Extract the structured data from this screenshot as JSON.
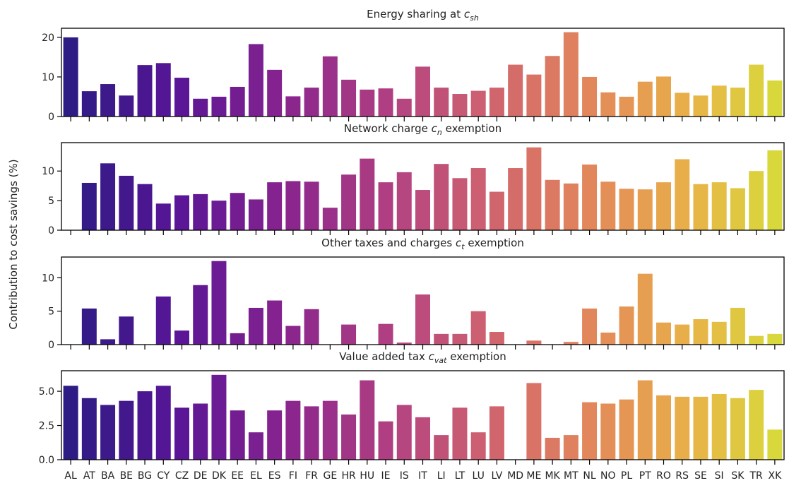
{
  "figure": {
    "ylabel": "Contribution to cost savings (%)"
  },
  "chart_data": [
    {
      "type": "bar",
      "title": "Energy sharing at c_sh",
      "title_main": "Energy sharing at ",
      "title_sym": "c",
      "title_sub": "sh",
      "title_suffix": "",
      "ylim": [
        0,
        22.3
      ],
      "yticks": [
        0,
        10,
        20
      ],
      "categories": [
        "AL",
        "AT",
        "BA",
        "BE",
        "BG",
        "CY",
        "CZ",
        "DE",
        "DK",
        "EE",
        "EL",
        "ES",
        "FI",
        "FR",
        "GE",
        "HR",
        "HU",
        "IE",
        "IS",
        "IT",
        "LI",
        "LT",
        "LU",
        "LV",
        "MD",
        "ME",
        "MK",
        "MT",
        "NL",
        "NO",
        "PL",
        "PT",
        "RO",
        "RS",
        "SE",
        "SI",
        "SK",
        "TR",
        "XK"
      ],
      "values": [
        20.0,
        6.4,
        8.2,
        5.3,
        13.0,
        13.5,
        9.8,
        4.5,
        5.0,
        7.5,
        18.3,
        11.8,
        5.1,
        7.3,
        15.2,
        9.3,
        6.8,
        7.1,
        4.5,
        12.6,
        7.3,
        5.7,
        6.5,
        7.3,
        13.1,
        10.6,
        15.3,
        21.3,
        10.0,
        6.1,
        5.0,
        8.8,
        10.1,
        6.0,
        5.3,
        7.8,
        7.3,
        13.1,
        9.1
      ]
    },
    {
      "type": "bar",
      "title": "Network charge c_n exemption",
      "title_main": "Network charge ",
      "title_sym": "c",
      "title_sub": "n",
      "title_suffix": " exemption",
      "ylim": [
        0,
        14.8
      ],
      "yticks": [
        0,
        5,
        10
      ],
      "categories": [
        "AL",
        "AT",
        "BA",
        "BE",
        "BG",
        "CY",
        "CZ",
        "DE",
        "DK",
        "EE",
        "EL",
        "ES",
        "FI",
        "FR",
        "GE",
        "HR",
        "HU",
        "IE",
        "IS",
        "IT",
        "LI",
        "LT",
        "LU",
        "LV",
        "MD",
        "ME",
        "MK",
        "MT",
        "NL",
        "NO",
        "PL",
        "PT",
        "RO",
        "RS",
        "SE",
        "SI",
        "SK",
        "TR",
        "XK"
      ],
      "values": [
        0,
        8.0,
        11.3,
        9.2,
        7.8,
        4.5,
        5.9,
        6.1,
        5.0,
        6.3,
        5.2,
        8.1,
        8.3,
        8.2,
        3.8,
        9.4,
        12.1,
        8.1,
        9.8,
        6.8,
        11.2,
        8.8,
        10.5,
        6.5,
        10.5,
        14.0,
        8.5,
        7.9,
        11.1,
        8.2,
        7.0,
        6.9,
        8.1,
        12.0,
        7.8,
        8.1,
        7.1,
        10.0,
        13.5
      ]
    },
    {
      "type": "bar",
      "title": "Other taxes and charges c_t exemption",
      "title_main": "Other taxes and charges ",
      "title_sym": "c",
      "title_sub": "t",
      "title_suffix": " exemption",
      "ylim": [
        0,
        13.1
      ],
      "yticks": [
        0,
        5,
        10
      ],
      "categories": [
        "AL",
        "AT",
        "BA",
        "BE",
        "BG",
        "CY",
        "CZ",
        "DE",
        "DK",
        "EE",
        "EL",
        "ES",
        "FI",
        "FR",
        "GE",
        "HR",
        "HU",
        "IE",
        "IS",
        "IT",
        "LI",
        "LT",
        "LU",
        "LV",
        "MD",
        "ME",
        "MK",
        "MT",
        "NL",
        "NO",
        "PL",
        "PT",
        "RO",
        "RS",
        "SE",
        "SI",
        "SK",
        "TR",
        "XK"
      ],
      "values": [
        0,
        5.4,
        0.8,
        4.2,
        0,
        7.2,
        2.1,
        8.9,
        12.5,
        1.7,
        5.5,
        6.6,
        2.8,
        5.3,
        0,
        3.0,
        0,
        3.1,
        0.3,
        7.5,
        1.6,
        1.6,
        5.0,
        1.9,
        0,
        0.6,
        0,
        0.4,
        5.4,
        1.8,
        5.7,
        10.6,
        3.3,
        3.0,
        3.8,
        3.4,
        5.5,
        1.3,
        1.6
      ]
    },
    {
      "type": "bar",
      "title": "Value added tax c_vat exemption",
      "title_main": "Value added tax ",
      "title_sym": "c",
      "title_sub": "vat",
      "title_suffix": " exemption",
      "ylim": [
        0,
        6.5
      ],
      "yticks": [
        0.0,
        2.5,
        5.0
      ],
      "yticklabels": [
        "0.0",
        "2.5",
        "5.0"
      ],
      "categories": [
        "AL",
        "AT",
        "BA",
        "BE",
        "BG",
        "CY",
        "CZ",
        "DE",
        "DK",
        "EE",
        "EL",
        "ES",
        "FI",
        "FR",
        "GE",
        "HR",
        "HU",
        "IE",
        "IS",
        "IT",
        "LI",
        "LT",
        "LU",
        "LV",
        "MD",
        "ME",
        "MK",
        "MT",
        "NL",
        "NO",
        "PL",
        "PT",
        "RO",
        "RS",
        "SE",
        "SI",
        "SK",
        "TR",
        "XK"
      ],
      "values": [
        5.4,
        4.5,
        4.0,
        4.3,
        5.0,
        5.4,
        3.8,
        4.1,
        6.2,
        3.6,
        2.0,
        3.6,
        4.3,
        3.9,
        4.3,
        3.3,
        5.8,
        2.8,
        4.0,
        3.1,
        1.8,
        3.8,
        2.0,
        3.9,
        0,
        5.6,
        1.6,
        1.8,
        4.2,
        4.1,
        4.4,
        5.8,
        4.7,
        4.6,
        4.6,
        4.8,
        4.5,
        5.1,
        2.2
      ]
    }
  ]
}
